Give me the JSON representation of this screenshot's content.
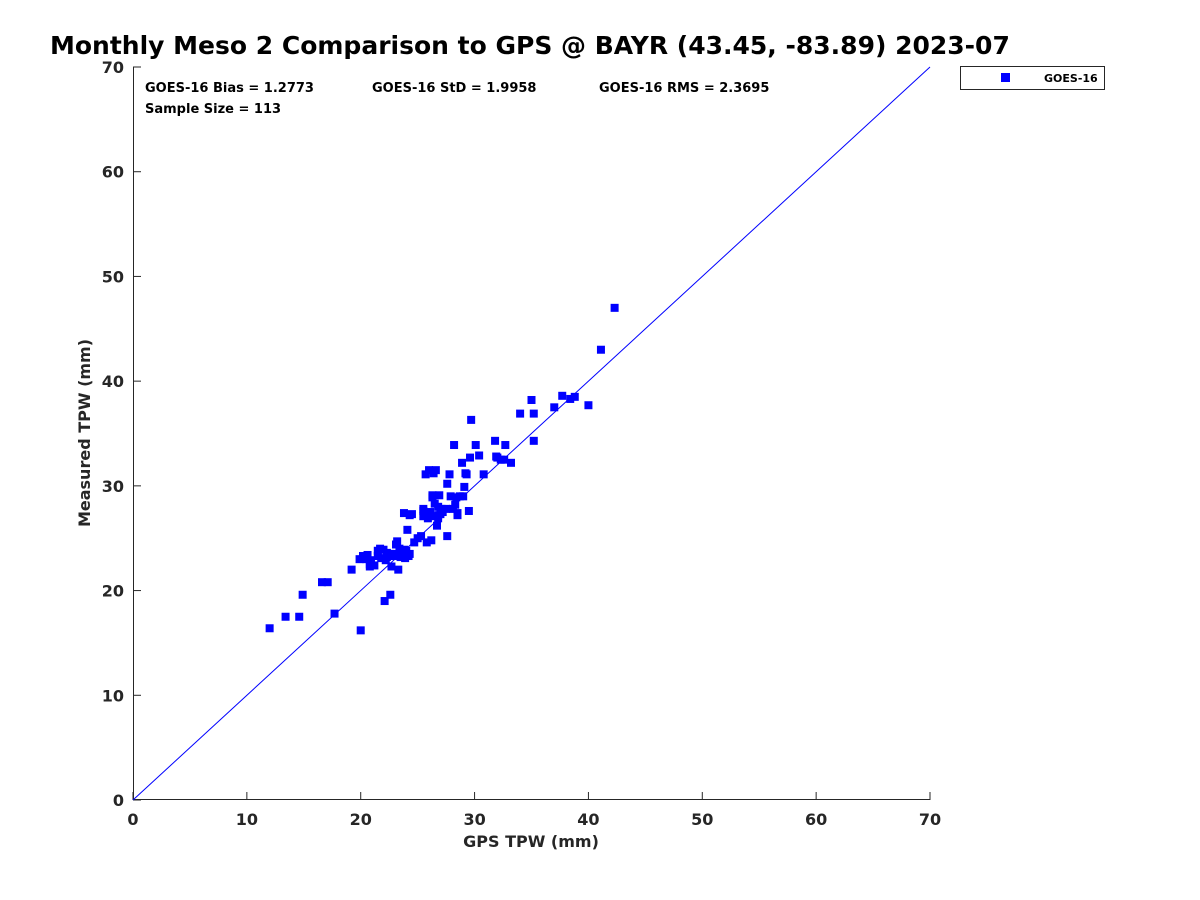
{
  "chart_data": {
    "type": "scatter",
    "title": "Monthly Meso 2 Comparison to GPS @ BAYR (43.45, -83.89) 2023-07",
    "xlabel": "GPS TPW (mm)",
    "ylabel": "Measured TPW (mm)",
    "xlim": [
      0,
      70
    ],
    "ylim": [
      0,
      70
    ],
    "xticks": [
      "0",
      "10",
      "20",
      "30",
      "40",
      "50",
      "60",
      "70"
    ],
    "yticks": [
      "0",
      "10",
      "20",
      "30",
      "40",
      "50",
      "60",
      "70"
    ],
    "grid": false,
    "legend_position": "outside-top-right",
    "reference_line": {
      "from": [
        0,
        0
      ],
      "to": [
        70,
        70
      ],
      "color": "#0000ff"
    },
    "stats": {
      "bias": "GOES-16 Bias = 1.2773",
      "std": "GOES-16 StD = 1.9958",
      "rms": "GOES-16 RMS = 2.3695",
      "sample": "Sample Size = 113"
    },
    "series": [
      {
        "name": "GOES-16",
        "color": "#0000ff",
        "marker": "square",
        "x": [
          12.0,
          13.4,
          14.6,
          14.9,
          16.6,
          17.1,
          17.7,
          19.2,
          19.9,
          20.0,
          20.2,
          20.5,
          20.6,
          20.8,
          20.8,
          20.9,
          21.2,
          21.5,
          21.5,
          21.7,
          21.8,
          22.0,
          22.1,
          22.2,
          22.3,
          22.6,
          22.7,
          22.9,
          23.0,
          23.1,
          23.2,
          23.3,
          23.4,
          23.5,
          23.6,
          23.8,
          23.8,
          24.0,
          24.1,
          24.2,
          24.3,
          24.5,
          24.7,
          25.0,
          25.3,
          25.5,
          25.5,
          25.7,
          25.8,
          26.0,
          26.1,
          26.2,
          26.3,
          26.3,
          26.4,
          26.5,
          26.6,
          26.7,
          26.8,
          26.8,
          26.9,
          27.0,
          27.1,
          27.2,
          27.5,
          27.6,
          27.6,
          27.8,
          27.9,
          28.1,
          28.2,
          28.3,
          28.4,
          28.5,
          28.7,
          28.9,
          29.0,
          29.1,
          29.2,
          29.3,
          29.5,
          29.6,
          29.7,
          30.1,
          30.4,
          30.8,
          31.8,
          31.9,
          32.0,
          32.3,
          32.6,
          32.7,
          33.2,
          34.0,
          35.0,
          35.2,
          35.2,
          37.0,
          37.7,
          38.4,
          38.8,
          40.0,
          41.1,
          42.3,
          22.3,
          22.6,
          26.2,
          25.9,
          24.3,
          23.9,
          25.5,
          26.8,
          28.5
        ],
        "y": [
          16.4,
          17.5,
          17.5,
          19.6,
          20.8,
          20.8,
          17.8,
          22.0,
          23.0,
          16.2,
          23.3,
          23.0,
          23.4,
          22.3,
          22.5,
          22.9,
          22.4,
          23.3,
          23.8,
          24.0,
          23.1,
          23.9,
          19.0,
          22.9,
          23.6,
          19.6,
          22.3,
          23.3,
          23.5,
          24.4,
          24.7,
          22.0,
          24.0,
          23.2,
          23.4,
          23.9,
          27.4,
          23.8,
          25.8,
          23.3,
          23.5,
          27.3,
          24.6,
          25.0,
          25.2,
          27.1,
          27.8,
          31.1,
          24.6,
          31.5,
          27.5,
          24.8,
          28.9,
          29.1,
          31.2,
          28.3,
          31.5,
          26.2,
          28.0,
          27.2,
          29.1,
          27.3,
          27.8,
          27.5,
          27.8,
          30.2,
          25.2,
          31.1,
          29.0,
          27.8,
          33.9,
          28.2,
          28.9,
          27.2,
          29.0,
          32.2,
          29.0,
          29.9,
          31.2,
          31.1,
          27.6,
          32.7,
          36.3,
          33.9,
          32.9,
          31.1,
          34.3,
          32.8,
          32.7,
          32.5,
          32.5,
          33.9,
          32.2,
          36.9,
          38.2,
          34.3,
          36.9,
          37.5,
          38.6,
          38.3,
          38.5,
          37.7,
          43.0,
          47.0,
          23.2,
          23.5,
          27.1,
          26.9,
          27.2,
          23.1,
          27.6,
          26.9,
          27.4
        ]
      }
    ]
  }
}
